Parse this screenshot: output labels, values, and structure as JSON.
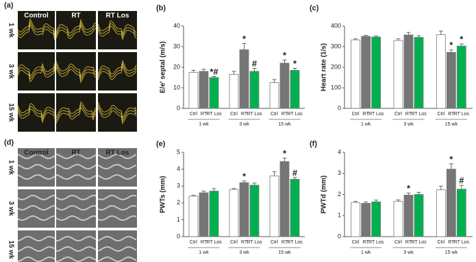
{
  "panels": {
    "a": {
      "label": "(a)",
      "columns": [
        "Control",
        "RT",
        "RT Los"
      ],
      "rows": [
        "1 wk",
        "3 wk",
        "15 wk"
      ]
    },
    "d": {
      "label": "(d)",
      "columns": [
        "Control",
        "RT",
        "RT Los"
      ],
      "rows": [
        "1 wk",
        "3 wk",
        "15 wk"
      ]
    }
  },
  "chart_data": [
    {
      "type": "bar",
      "label": "(b)",
      "ylabel": "E/e' septal (m/s)",
      "categories": [
        "1 wk",
        "3 wk",
        "15 wk"
      ],
      "ylim": [
        0,
        40
      ],
      "yticks": [
        0,
        10,
        20,
        30,
        40
      ],
      "series": [
        {
          "name": "Ctrl",
          "color": "#ffffff",
          "values": [
            17.5,
            16.5,
            12.5
          ],
          "errors": [
            1,
            1.5,
            1.5
          ],
          "annotations": [
            null,
            null,
            null
          ]
        },
        {
          "name": "RT",
          "color": "#767676",
          "values": [
            18,
            28.5,
            22
          ],
          "errors": [
            1,
            3,
            1.5
          ],
          "annotations": [
            null,
            "*",
            "*"
          ]
        },
        {
          "name": "RT Los",
          "color": "#00b050",
          "values": [
            15,
            18,
            18.5
          ],
          "errors": [
            0.5,
            1.5,
            1
          ],
          "annotations": [
            "*#",
            "#",
            "*"
          ]
        }
      ]
    },
    {
      "type": "bar",
      "label": "(c)",
      "ylabel": "Heart rate (1/s)",
      "categories": [
        "1 wk",
        "3 wk",
        "15 wk"
      ],
      "ylim": [
        0,
        400
      ],
      "yticks": [
        0,
        100,
        200,
        300,
        400
      ],
      "series": [
        {
          "name": "Ctrl",
          "color": "#ffffff",
          "values": [
            333,
            330,
            358
          ],
          "errors": [
            5,
            8,
            18
          ],
          "annotations": [
            null,
            null,
            null
          ]
        },
        {
          "name": "RT",
          "color": "#767676",
          "values": [
            350,
            357,
            272
          ],
          "errors": [
            5,
            12,
            12
          ],
          "annotations": [
            null,
            null,
            "*"
          ]
        },
        {
          "name": "RT Los",
          "color": "#00b050",
          "values": [
            347,
            345,
            303
          ],
          "errors": [
            5,
            8,
            10
          ],
          "annotations": [
            null,
            null,
            "*"
          ]
        }
      ]
    },
    {
      "type": "bar",
      "label": "(e)",
      "ylabel": "PWTs (mm)",
      "categories": [
        "1 wk",
        "3 wk",
        "15 wk"
      ],
      "ylim": [
        0,
        5
      ],
      "yticks": [
        0,
        1,
        2,
        3,
        4,
        5
      ],
      "series": [
        {
          "name": "Ctrl",
          "color": "#ffffff",
          "values": [
            2.4,
            2.8,
            3.6
          ],
          "errors": [
            0.05,
            0.05,
            0.25
          ],
          "annotations": [
            null,
            null,
            null
          ]
        },
        {
          "name": "RT",
          "color": "#767676",
          "values": [
            2.6,
            3.2,
            4.45
          ],
          "errors": [
            0.1,
            0.1,
            0.2
          ],
          "annotations": [
            null,
            "*",
            "*"
          ]
        },
        {
          "name": "RT Los",
          "color": "#00b050",
          "values": [
            2.7,
            3.05,
            3.4
          ],
          "errors": [
            0.15,
            0.12,
            0.1
          ],
          "annotations": [
            null,
            null,
            "#"
          ]
        }
      ]
    },
    {
      "type": "bar",
      "label": "(f)",
      "ylabel": "PWTd (mm)",
      "categories": [
        "1 wk",
        "3 wk",
        "15 wk"
      ],
      "ylim": [
        0,
        4
      ],
      "yticks": [
        0,
        1,
        2,
        3,
        4
      ],
      "series": [
        {
          "name": "Ctrl",
          "color": "#ffffff",
          "values": [
            1.62,
            1.67,
            2.22
          ],
          "errors": [
            0.05,
            0.07,
            0.18
          ],
          "annotations": [
            null,
            null,
            null
          ]
        },
        {
          "name": "RT",
          "color": "#767676",
          "values": [
            1.58,
            1.97,
            3.2
          ],
          "errors": [
            0.07,
            0.1,
            0.25
          ],
          "annotations": [
            null,
            "*",
            "*"
          ]
        },
        {
          "name": "RT Los",
          "color": "#00b050",
          "values": [
            1.65,
            2.0,
            2.25
          ],
          "errors": [
            0.08,
            0.1,
            0.18
          ],
          "annotations": [
            null,
            null,
            "#"
          ]
        }
      ]
    }
  ]
}
